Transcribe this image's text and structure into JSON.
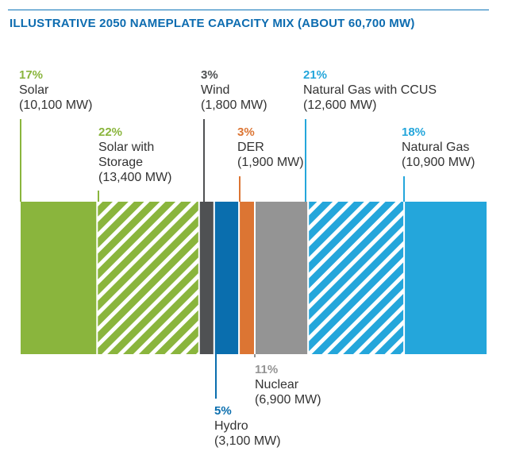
{
  "chart_data": {
    "type": "bar",
    "subtype": "stacked-100-percent (marimekko)",
    "title": "ILLUSTRATIVE 2050 NAMEPLATE CAPACITY MIX (ABOUT 60,700 MW)",
    "unit": "MW",
    "segments": [
      {
        "name": "Solar",
        "pct": "17%",
        "value": 10100,
        "capacity": "(10,100 MW)",
        "color": "#8ab53d",
        "hatched": false
      },
      {
        "name": "Solar with Storage",
        "name_lines": [
          "Solar with",
          "Storage"
        ],
        "pct": "22%",
        "value": 13400,
        "capacity": "(13,400 MW)",
        "color": "#8ab53d",
        "hatched": true
      },
      {
        "name": "Wind",
        "pct": "3%",
        "value": 1800,
        "capacity": "(1,800 MW)",
        "color": "#4f5153",
        "hatched": false
      },
      {
        "name": "Hydro",
        "pct": "5%",
        "value": 3100,
        "capacity": "(3,100 MW)",
        "color": "#0a6eae",
        "hatched": false
      },
      {
        "name": "DER",
        "pct": "3%",
        "value": 1900,
        "capacity": "(1,900 MW)",
        "color": "#dc7533",
        "hatched": false
      },
      {
        "name": "Nuclear",
        "pct": "11%",
        "value": 6900,
        "capacity": "(6,900 MW)",
        "color": "#949494",
        "hatched": false
      },
      {
        "name": "Natural Gas with CCUS",
        "pct": "21%",
        "value": 12600,
        "capacity": "(12,600 MW)",
        "color": "#24a6db",
        "hatched": true
      },
      {
        "name": "Natural Gas",
        "pct": "18%",
        "value": 10900,
        "capacity": "(10,900 MW)",
        "color": "#24a6db",
        "hatched": false
      }
    ]
  }
}
